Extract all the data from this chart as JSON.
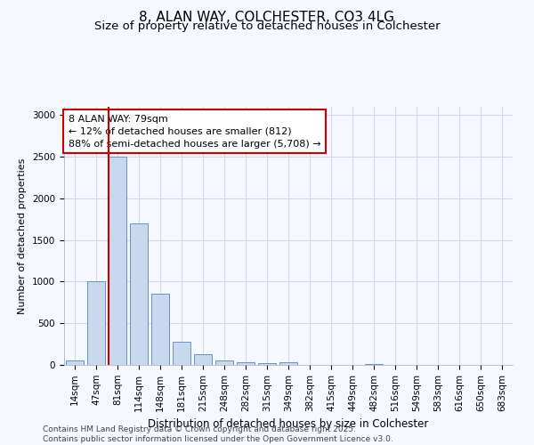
{
  "title": "8, ALAN WAY, COLCHESTER, CO3 4LG",
  "subtitle": "Size of property relative to detached houses in Colchester",
  "xlabel": "Distribution of detached houses by size in Colchester",
  "ylabel": "Number of detached properties",
  "categories": [
    "14sqm",
    "47sqm",
    "81sqm",
    "114sqm",
    "148sqm",
    "181sqm",
    "215sqm",
    "248sqm",
    "282sqm",
    "315sqm",
    "349sqm",
    "382sqm",
    "415sqm",
    "449sqm",
    "482sqm",
    "516sqm",
    "549sqm",
    "583sqm",
    "616sqm",
    "650sqm",
    "683sqm"
  ],
  "values": [
    50,
    1000,
    2500,
    1700,
    850,
    275,
    125,
    50,
    30,
    20,
    30,
    5,
    5,
    5,
    15,
    3,
    3,
    2,
    2,
    1,
    1
  ],
  "bar_color": "#c8d8ee",
  "bar_edge_color": "#7090c0",
  "vline_x_index": 2,
  "vline_color": "#cc0000",
  "annotation_line1": "8 ALAN WAY: 79sqm",
  "annotation_line2": "← 12% of detached houses are smaller (812)",
  "annotation_line3": "88% of semi-detached houses are larger (5,708) →",
  "annotation_box_edgecolor": "#cc0000",
  "annotation_box_facecolor": "#ffffff",
  "ylim": [
    0,
    3100
  ],
  "yticks": [
    0,
    500,
    1000,
    1500,
    2000,
    2500,
    3000
  ],
  "footer_text": "Contains HM Land Registry data © Crown copyright and database right 2025.\nContains public sector information licensed under the Open Government Licence v3.0.",
  "background_color": "#f5f8ff",
  "grid_color": "#d0daea",
  "title_fontsize": 11,
  "subtitle_fontsize": 9.5,
  "ylabel_fontsize": 8,
  "xlabel_fontsize": 8.5,
  "tick_fontsize": 7.5,
  "footer_fontsize": 6.5
}
